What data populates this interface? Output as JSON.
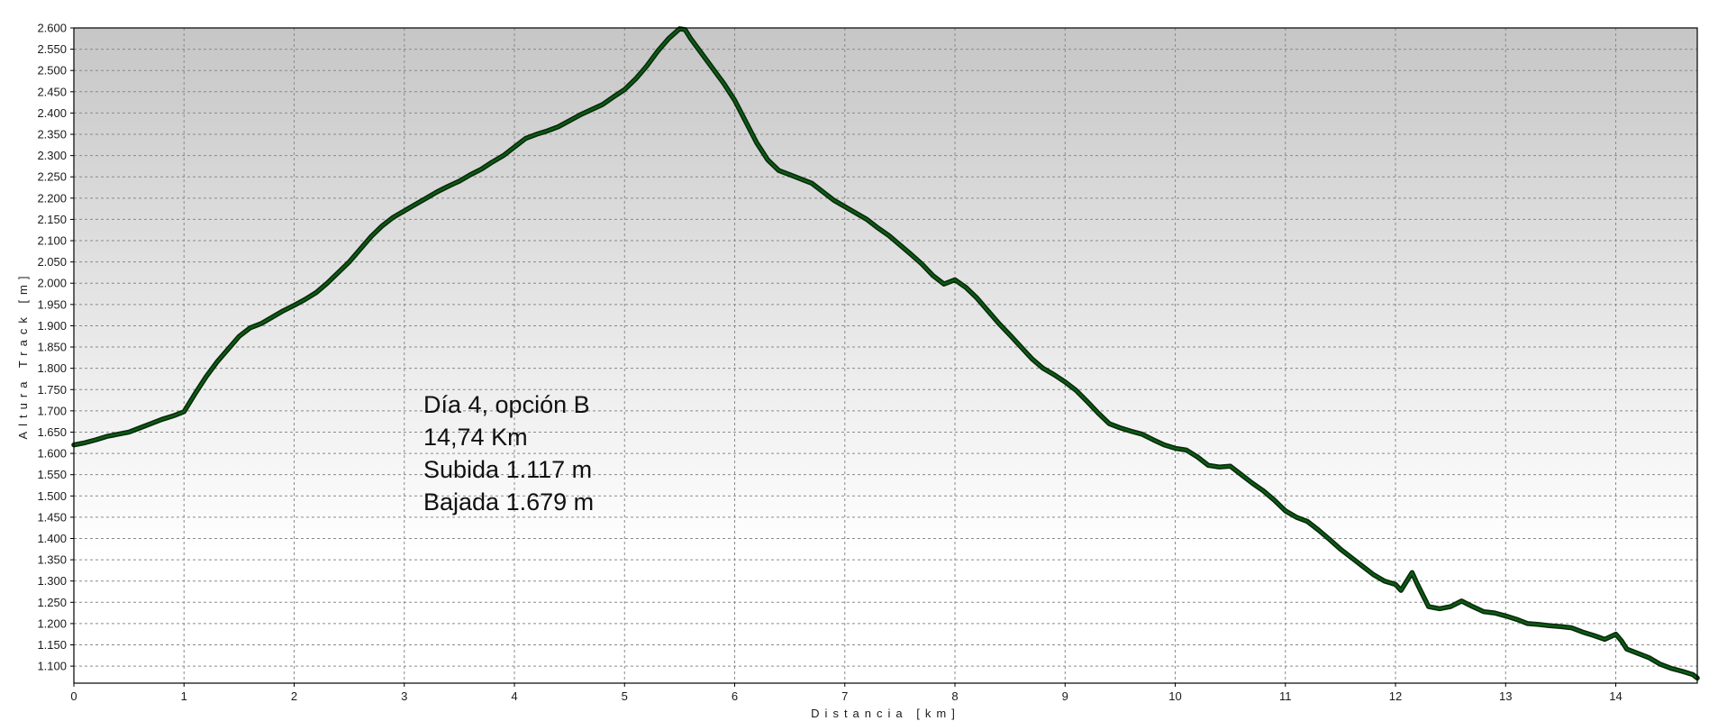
{
  "chart_data": {
    "type": "area",
    "xlabel": "Distancia [km]",
    "ylabel": "Altura Track [m]",
    "xlim": [
      0,
      14.74
    ],
    "ylim": [
      1060,
      2600
    ],
    "x_ticks": [
      0,
      1,
      2,
      3,
      4,
      5,
      6,
      7,
      8,
      9,
      10,
      11,
      12,
      13,
      14
    ],
    "x_tick_labels": [
      "0",
      "1",
      "2",
      "3",
      "4",
      "5",
      "6",
      "7",
      "8",
      "9",
      "10",
      "11",
      "12",
      "13",
      "14"
    ],
    "y_ticks": [
      1100,
      1150,
      1200,
      1250,
      1300,
      1350,
      1400,
      1450,
      1500,
      1550,
      1600,
      1650,
      1700,
      1750,
      1800,
      1850,
      1900,
      1950,
      2000,
      2050,
      2100,
      2150,
      2200,
      2250,
      2300,
      2350,
      2400,
      2450,
      2500,
      2550,
      2600
    ],
    "y_tick_labels": [
      "1.100",
      "1.150",
      "1.200",
      "1.250",
      "1.300",
      "1.350",
      "1.400",
      "1.450",
      "1.500",
      "1.550",
      "1.600",
      "1.650",
      "1.700",
      "1.750",
      "1.800",
      "1.850",
      "1.900",
      "1.950",
      "2.000",
      "2.050",
      "2.100",
      "2.150",
      "2.200",
      "2.250",
      "2.300",
      "2.350",
      "2.400",
      "2.450",
      "2.500",
      "2.550",
      "2.600"
    ],
    "grid": true,
    "colors": {
      "line": "#0b5e14",
      "line_outline": "#0a2a0c",
      "grid": "#8a8a8a",
      "plot_bg_top": "#c6c6c6",
      "plot_bg_bottom": "#ffffff"
    },
    "annotation": [
      "Día 4, opción B",
      "14,74 Km",
      "Subida 1.117 m",
      "Bajada 1.679 m"
    ],
    "series": [
      {
        "x": [
          0,
          0.1,
          0.2,
          0.3,
          0.4,
          0.5,
          0.6,
          0.7,
          0.8,
          0.9,
          1.0,
          1.1,
          1.2,
          1.3,
          1.4,
          1.5,
          1.6,
          1.7,
          1.8,
          1.9,
          2.0,
          2.1,
          2.2,
          2.3,
          2.4,
          2.5,
          2.6,
          2.7,
          2.8,
          2.9,
          3.0,
          3.1,
          3.2,
          3.3,
          3.4,
          3.5,
          3.6,
          3.7,
          3.8,
          3.9,
          4.0,
          4.1,
          4.2,
          4.3,
          4.4,
          4.5,
          4.6,
          4.7,
          4.8,
          4.9,
          5.0,
          5.1,
          5.2,
          5.3,
          5.4,
          5.5,
          5.55,
          5.6,
          5.7,
          5.8,
          5.9,
          6.0,
          6.1,
          6.2,
          6.3,
          6.4,
          6.5,
          6.6,
          6.7,
          6.8,
          6.9,
          7.0,
          7.1,
          7.2,
          7.3,
          7.4,
          7.5,
          7.6,
          7.7,
          7.8,
          7.9,
          8.0,
          8.1,
          8.2,
          8.3,
          8.4,
          8.5,
          8.6,
          8.7,
          8.8,
          8.9,
          9.0,
          9.1,
          9.2,
          9.3,
          9.4,
          9.5,
          9.6,
          9.7,
          9.8,
          9.9,
          10.0,
          10.1,
          10.2,
          10.3,
          10.4,
          10.5,
          10.6,
          10.7,
          10.8,
          10.9,
          11.0,
          11.1,
          11.2,
          11.3,
          11.4,
          11.5,
          11.6,
          11.7,
          11.8,
          11.9,
          12.0,
          12.05,
          12.15,
          12.2,
          12.3,
          12.4,
          12.5,
          12.6,
          12.7,
          12.8,
          12.9,
          13.0,
          13.1,
          13.2,
          13.3,
          13.4,
          13.5,
          13.6,
          13.7,
          13.8,
          13.9,
          14.0,
          14.05,
          14.1,
          14.2,
          14.3,
          14.4,
          14.5,
          14.6,
          14.7,
          14.74
        ],
        "y": [
          1620,
          1625,
          1632,
          1640,
          1645,
          1650,
          1660,
          1670,
          1680,
          1688,
          1698,
          1740,
          1780,
          1815,
          1845,
          1875,
          1895,
          1905,
          1920,
          1935,
          1948,
          1962,
          1978,
          2000,
          2025,
          2050,
          2080,
          2110,
          2135,
          2155,
          2170,
          2185,
          2200,
          2215,
          2228,
          2240,
          2255,
          2268,
          2285,
          2300,
          2320,
          2340,
          2350,
          2358,
          2368,
          2382,
          2396,
          2408,
          2420,
          2438,
          2455,
          2480,
          2510,
          2545,
          2575,
          2598,
          2596,
          2575,
          2540,
          2505,
          2470,
          2430,
          2380,
          2330,
          2290,
          2265,
          2255,
          2245,
          2235,
          2215,
          2195,
          2180,
          2165,
          2150,
          2130,
          2112,
          2090,
          2068,
          2045,
          2018,
          1998,
          2008,
          1990,
          1965,
          1935,
          1905,
          1878,
          1850,
          1822,
          1800,
          1785,
          1768,
          1748,
          1722,
          1695,
          1670,
          1660,
          1652,
          1645,
          1632,
          1620,
          1612,
          1608,
          1592,
          1572,
          1568,
          1570,
          1550,
          1530,
          1512,
          1490,
          1465,
          1450,
          1440,
          1420,
          1398,
          1375,
          1355,
          1335,
          1315,
          1300,
          1292,
          1278,
          1320,
          1292,
          1240,
          1235,
          1240,
          1253,
          1240,
          1228,
          1225,
          1218,
          1210,
          1200,
          1198,
          1195,
          1193,
          1190,
          1180,
          1172,
          1163,
          1175,
          1160,
          1140,
          1130,
          1120,
          1105,
          1095,
          1088,
          1080,
          1072
        ]
      }
    ]
  }
}
